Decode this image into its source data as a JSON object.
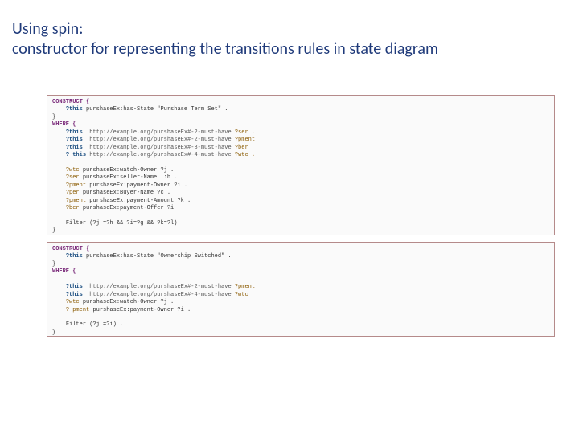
{
  "heading": {
    "line1": "Using spin:",
    "line2": "constructor for representing the transitions rules in state diagram"
  },
  "box1": {
    "l0": "CONSTRUCT {",
    "l1a": "?this",
    "l1b": " purshaseEx:has-State \"Purshase Term Set\" .",
    "l2": "}",
    "l3": "WHERE {",
    "l4a": "?this",
    "l4b": "  http://example.org/purshaseEx#-2-must-have ",
    "l4c": "?ser .",
    "l5a": "?this",
    "l5b": "  http://example.org/purshaseEx#-2-must-have ",
    "l5c": "?pment",
    "l6a": "?this",
    "l6b": "  http://example.org/purshaseEx#-3-must-have ",
    "l6c": "?ber",
    "l7a": "? this",
    "l7b": " http://example.org/purshaseEx#-4-must-have ",
    "l7c": "?wtc .",
    "l8": " ",
    "l9a": "?wtc",
    "l9b": " purshaseEx:watch-Owner ?j .",
    "l10a": "?ser",
    "l10b": " purshaseEx:seller-Name  :h .",
    "l11a": "?pment",
    "l11b": " purshaseEx:payment-Owner ?i .",
    "l12a": "?per",
    "l12b": " purshaseEx:Buyer-Name ?c .",
    "l13a": "?pment",
    "l13b": " purshaseEx:payment-Amount ?k .",
    "l14a": "?ber",
    "l14b": " purshaseEx:payment-Offer ?i .",
    "l15": " ",
    "l16": "Filter (?j =?h && ?i=?g && ?k=?l)",
    "l17": "}"
  },
  "box2": {
    "l0": "CONSTRUCT {",
    "l1a": "?this",
    "l1b": " purshaseEx:has-State \"Ownership Switched\" .",
    "l2": "}",
    "l3": "WHERE {",
    "l4": " ",
    "l5a": "?this",
    "l5b": "  http://example.org/purshaseEx#-2-must-have ",
    "l5c": "?pment",
    "l6a": "?this",
    "l6b": "  http://example.org/purshaseEx#-4-must-have ",
    "l6c": "?wtc",
    "l7a": "?wtc",
    "l7b": " purshaseEx:watch-Owner ?j .",
    "l8a": "? pment",
    "l8b": " purshaseEx:payment-Owner ?i .",
    "l9": " ",
    "l10": "Filter (?j =?i) .",
    "l11": "}"
  },
  "colors": {
    "heading": "#1f3a7a",
    "border": "#b58a8a",
    "keyword": "#7a2a7a",
    "var": "#1a4d80",
    "vr": "#8a5a00"
  }
}
